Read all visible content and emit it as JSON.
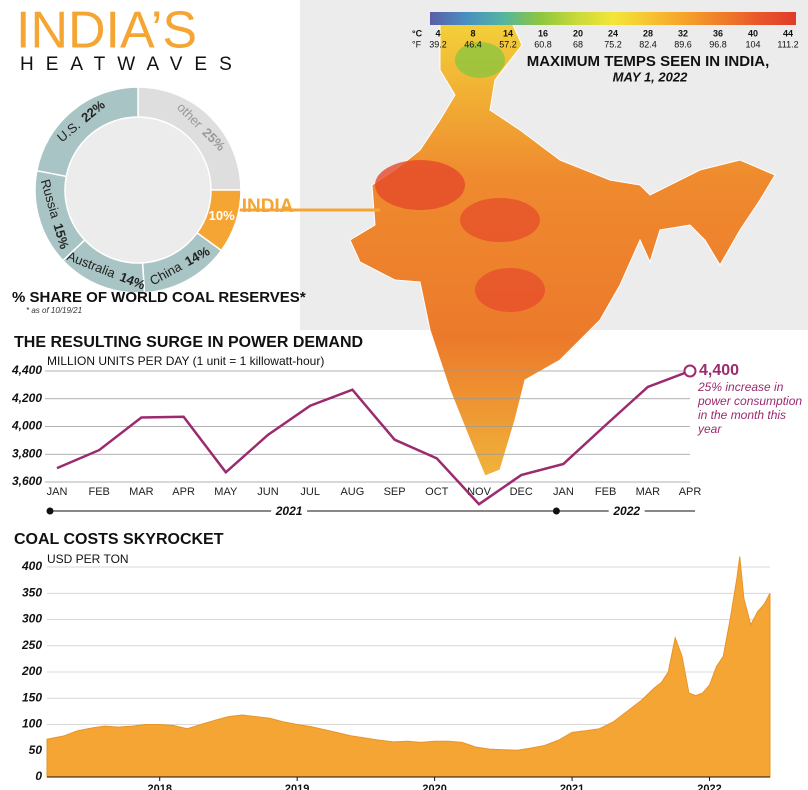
{
  "header": {
    "title": "INDIA’S",
    "subtitle": "HEATWAVES"
  },
  "chart_data": [
    {
      "type": "pie",
      "title": "% SHARE OF WORLD COAL RESERVES*",
      "note": "* as of 10/19/21",
      "categories": [
        "other",
        "INDIA",
        "China",
        "Australia",
        "Russia",
        "U.S."
      ],
      "values": [
        25,
        10,
        14,
        14,
        15,
        22
      ],
      "value_labels": [
        "25%",
        "10%",
        "14%",
        "14%",
        "15%",
        "22%"
      ],
      "colors": [
        "#dedede",
        "#f5a534",
        "#a9c4c5",
        "#a9c4c5",
        "#a9c4c5",
        "#a9c4c5"
      ],
      "highlight": "INDIA"
    },
    {
      "type": "line",
      "title": "THE RESULTING SURGE IN POWER DEMAND",
      "y_label": "MILLION UNITS PER DAY (1 unit = 1 killowatt-hour)",
      "categories": [
        "JAN",
        "FEB",
        "MAR",
        "APR",
        "MAY",
        "JUN",
        "JUL",
        "AUG",
        "SEP",
        "OCT",
        "NOV",
        "DEC",
        "JAN",
        "FEB",
        "MAR",
        "APR"
      ],
      "x_groups": [
        "2021",
        "2022"
      ],
      "values": [
        3700,
        3830,
        4065,
        4070,
        3670,
        3940,
        4150,
        4265,
        3905,
        3770,
        3440,
        3650,
        3730,
        4010,
        4285,
        4400
      ],
      "value_labels": [
        null,
        null,
        null,
        null,
        null,
        null,
        null,
        null,
        null,
        null,
        null,
        null,
        null,
        null,
        null,
        "4,400"
      ],
      "annotation": "25% increase in power consumption in the month this year",
      "color": "#9b2a6e",
      "ylim": [
        3600,
        4400
      ],
      "yticks": [
        {
          "value": 3600,
          "label": "3,600"
        },
        {
          "value": 3800,
          "label": "3,800"
        },
        {
          "value": 4000,
          "label": "4,000"
        },
        {
          "value": 4200,
          "label": "4,200"
        },
        {
          "value": 4400,
          "label": "4,400"
        }
      ],
      "grid": true
    },
    {
      "type": "area",
      "title": "COAL COSTS SKYROCKET",
      "y_label": "USD PER TON",
      "x": [
        2017.18,
        2017.3,
        2017.4,
        2017.5,
        2017.6,
        2017.7,
        2017.8,
        2017.9,
        2018.0,
        2018.1,
        2018.2,
        2018.3,
        2018.4,
        2018.5,
        2018.6,
        2018.7,
        2018.8,
        2018.9,
        2019.0,
        2019.1,
        2019.2,
        2019.3,
        2019.4,
        2019.5,
        2019.6,
        2019.7,
        2019.8,
        2019.9,
        2020.0,
        2020.1,
        2020.2,
        2020.3,
        2020.4,
        2020.5,
        2020.6,
        2020.7,
        2020.8,
        2020.9,
        2021.0,
        2021.1,
        2021.2,
        2021.3,
        2021.4,
        2021.5,
        2021.6,
        2021.65,
        2021.7,
        2021.75,
        2021.8,
        2021.85,
        2021.9,
        2021.95,
        2022.0,
        2022.05,
        2022.1,
        2022.15,
        2022.2,
        2022.22,
        2022.25,
        2022.3,
        2022.35,
        2022.4,
        2022.44
      ],
      "values": [
        72,
        78,
        88,
        93,
        97,
        95,
        97,
        100,
        100,
        98,
        92,
        100,
        108,
        115,
        118,
        115,
        112,
        105,
        100,
        96,
        90,
        84,
        78,
        74,
        70,
        67,
        68,
        66,
        68,
        68,
        66,
        57,
        53,
        52,
        51,
        55,
        60,
        70,
        85,
        88,
        92,
        105,
        125,
        145,
        170,
        180,
        200,
        265,
        230,
        160,
        155,
        160,
        175,
        210,
        230,
        300,
        380,
        420,
        340,
        290,
        315,
        330,
        350
      ],
      "color": "#f5a534",
      "xlim": [
        2017.18,
        2022.44
      ],
      "xticks": [
        2018,
        2019,
        2020,
        2021,
        2022
      ],
      "ylim": [
        0,
        400
      ],
      "yticks": [
        0,
        50,
        100,
        150,
        200,
        250,
        300,
        350,
        400
      ],
      "grid": true
    },
    {
      "type": "map",
      "title": "MAXIMUM TEMPS SEEN IN INDIA,",
      "subtitle": "MAY 1, 2022",
      "unit_c": "°C",
      "unit_f": "°F",
      "scale_c": [
        4,
        8,
        14,
        16,
        20,
        24,
        28,
        32,
        36,
        40,
        44
      ],
      "scale_f": [
        39.2,
        46.4,
        57.2,
        60.8,
        68,
        75.2,
        82.4,
        89.6,
        96.8,
        104,
        111.2
      ],
      "colors": [
        "#5b5ea6",
        "#4a8fc1",
        "#54b4a0",
        "#8cc63f",
        "#c8d93a",
        "#f3e637",
        "#f7c331",
        "#f5a12b",
        "#ef7d2a",
        "#e8572a",
        "#e03c28"
      ]
    }
  ]
}
